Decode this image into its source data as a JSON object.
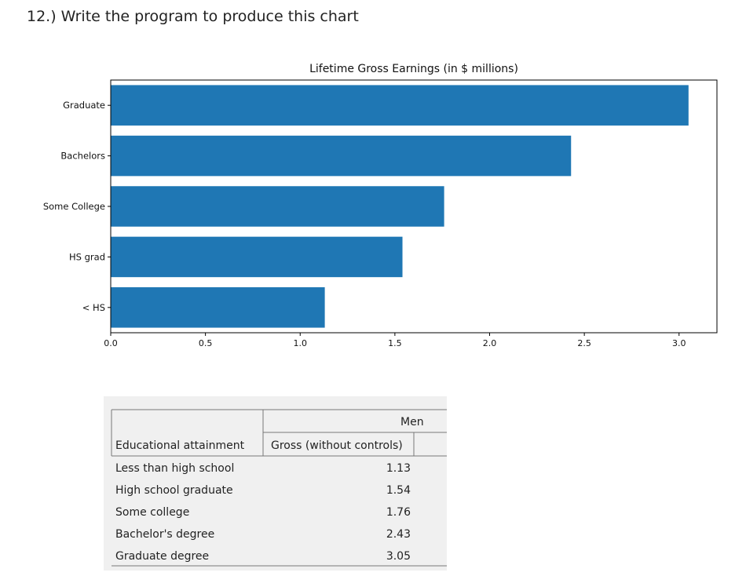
{
  "question": "12.) Write the program to produce this chart",
  "chart_data": {
    "type": "bar",
    "orientation": "horizontal",
    "title": "Lifetime Gross Earnings (in $ millions)",
    "categories": [
      "Graduate",
      "Bachelors",
      "Some College",
      "HS grad",
      "< HS"
    ],
    "values": [
      3.05,
      2.43,
      1.76,
      1.54,
      1.13
    ],
    "xlim": [
      0,
      3.2
    ],
    "xticks": [
      "0.0",
      "0.5",
      "1.0",
      "1.5",
      "2.0",
      "2.5",
      "3.0"
    ],
    "xlabel": "",
    "ylabel": "",
    "bar_color": "#1f77b4",
    "grid": false,
    "legend": "none"
  },
  "table": {
    "group_header": "Men",
    "col_header_label": "Educational attainment",
    "col_header_value": "Gross (without controls)",
    "rows": [
      {
        "label": "Less than high school",
        "value": "1.13"
      },
      {
        "label": "High school graduate",
        "value": "1.54"
      },
      {
        "label": "Some college",
        "value": "1.76"
      },
      {
        "label": "Bachelor's degree",
        "value": "2.43"
      },
      {
        "label": "Graduate degree",
        "value": "3.05"
      }
    ]
  }
}
